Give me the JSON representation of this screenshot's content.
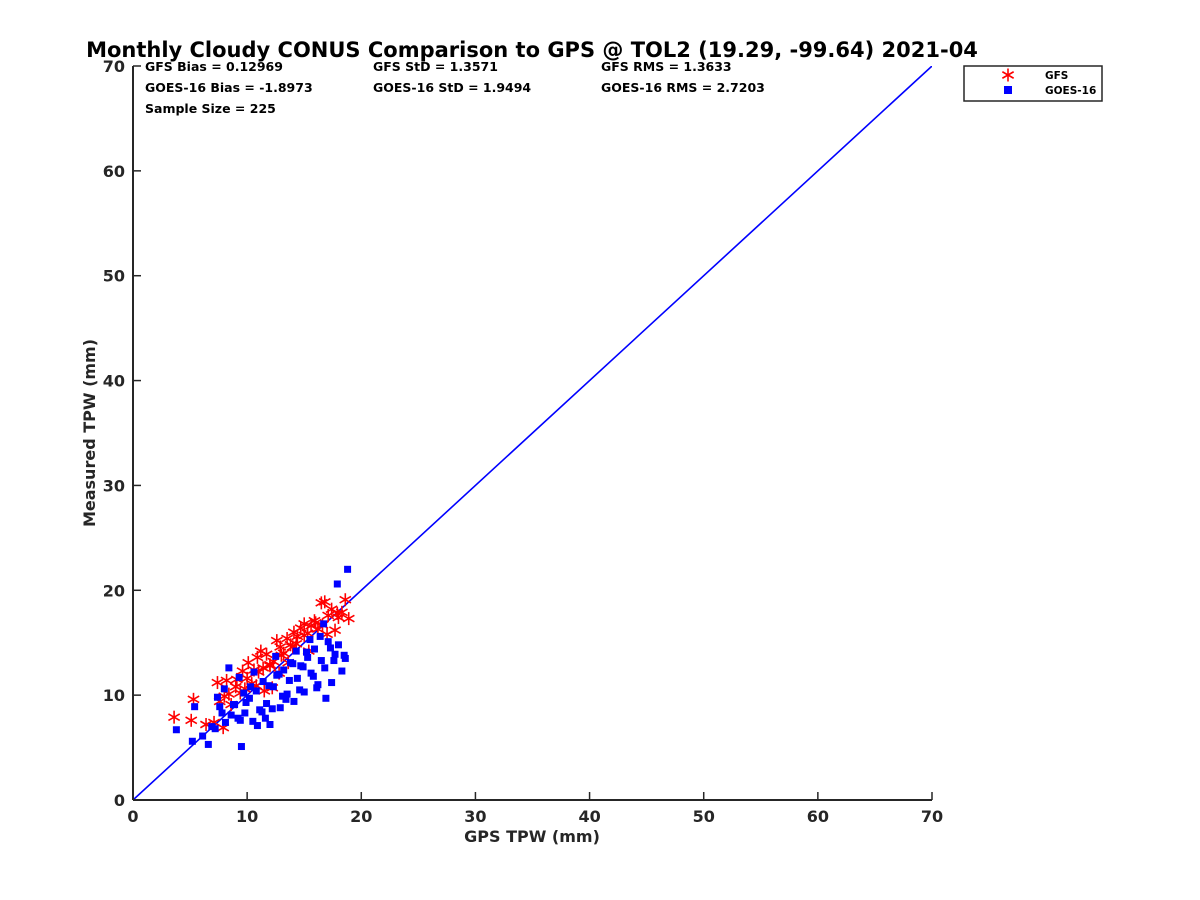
{
  "chart_data": {
    "type": "scatter",
    "title": "Monthly Cloudy CONUS Comparison to GPS @ TOL2 (19.29, -99.64) 2021-04",
    "xlabel": "GPS TPW (mm)",
    "ylabel": "Measured TPW (mm)",
    "xlim": [
      0,
      70
    ],
    "ylim": [
      0,
      70
    ],
    "xticks": [
      0,
      10,
      20,
      30,
      40,
      50,
      60,
      70
    ],
    "yticks": [
      0,
      10,
      20,
      30,
      40,
      50,
      60,
      70
    ],
    "grid": false,
    "legend_position": "outside-top-right",
    "stats": [
      [
        "GFS Bias = 0.12969",
        "GFS StD = 1.3571",
        "GFS RMS = 1.3633"
      ],
      [
        "GOES-16 Bias = -1.8973",
        "GOES-16 StD = 1.9494",
        "GOES-16 RMS = 2.7203"
      ],
      [
        "Sample Size = 225"
      ]
    ],
    "reference_line": {
      "x": [
        0,
        70
      ],
      "y": [
        0,
        70
      ],
      "color": "#0000ff"
    },
    "series": [
      {
        "name": "GFS",
        "marker": "asterisk",
        "color": "#ff0000",
        "x": [
          3.6,
          5.3,
          5.1,
          6.4,
          7.1,
          7.4,
          7.9,
          8.2,
          8.6,
          9.1,
          9.4,
          9.8,
          10.1,
          10.4,
          10.6,
          10.9,
          11.2,
          11.4,
          11.7,
          12.0,
          12.3,
          12.6,
          12.9,
          13.2,
          13.5,
          13.8,
          14.1,
          14.4,
          14.7,
          15.0,
          15.3,
          15.6,
          15.9,
          16.2,
          16.5,
          16.8,
          17.1,
          17.4,
          17.7,
          18.0,
          18.3,
          18.6,
          18.9,
          8.0,
          9.0,
          10.0,
          11.0,
          12.0,
          13.0,
          14.0,
          15.0,
          16.0,
          17.0,
          11.5,
          12.8,
          14.3,
          9.6,
          10.8,
          13.6,
          15.4,
          16.6,
          17.9,
          8.4,
          7.6,
          12.2
        ],
        "y": [
          7.9,
          9.6,
          7.6,
          7.2,
          7.4,
          11.2,
          6.9,
          11.4,
          9.1,
          11.5,
          10.2,
          10.6,
          13.1,
          11.1,
          12.4,
          13.6,
          14.2,
          12.6,
          13.9,
          12.8,
          13.2,
          15.2,
          14.6,
          14.0,
          15.4,
          14.8,
          16.0,
          15.6,
          16.4,
          16.8,
          15.9,
          16.6,
          17.1,
          16.3,
          18.8,
          18.9,
          17.6,
          18.2,
          16.2,
          17.4,
          17.9,
          19.1,
          17.3,
          9.9,
          10.8,
          11.6,
          12.2,
          12.9,
          13.8,
          14.6,
          15.7,
          16.9,
          15.8,
          10.4,
          12.1,
          14.9,
          12.3,
          10.9,
          13.1,
          14.2,
          16.7,
          17.8,
          10.1,
          9.4,
          10.7
        ]
      },
      {
        "name": "GOES-16",
        "marker": "square",
        "color": "#0000ff",
        "x": [
          3.8,
          5.2,
          5.4,
          6.1,
          6.6,
          7.2,
          7.6,
          8.1,
          8.4,
          8.8,
          9.2,
          9.5,
          9.8,
          10.2,
          10.5,
          10.8,
          11.1,
          11.4,
          11.7,
          12.0,
          12.3,
          12.6,
          12.9,
          13.2,
          13.5,
          13.8,
          14.1,
          14.4,
          14.7,
          15.0,
          15.3,
          15.6,
          15.9,
          16.2,
          16.5,
          16.8,
          17.1,
          17.4,
          17.7,
          18.0,
          18.3,
          18.6,
          18.8,
          7.4,
          8.0,
          8.6,
          9.3,
          9.9,
          10.6,
          11.3,
          11.9,
          12.5,
          13.1,
          13.7,
          14.3,
          14.9,
          15.5,
          16.1,
          16.7,
          17.3,
          17.9,
          18.5,
          9.7,
          10.9,
          12.2,
          13.4,
          14.6,
          15.8,
          16.9,
          11.6,
          10.3,
          12.8,
          14.0,
          15.2,
          16.4,
          17.6,
          7.8,
          8.9,
          6.9,
          9.4
        ],
        "y": [
          6.7,
          5.6,
          8.9,
          6.1,
          5.3,
          6.8,
          8.9,
          7.4,
          12.6,
          9.1,
          7.8,
          5.1,
          8.3,
          9.7,
          7.5,
          10.4,
          8.6,
          11.3,
          9.2,
          7.2,
          10.8,
          11.9,
          8.8,
          12.4,
          10.1,
          13.1,
          9.4,
          11.6,
          12.8,
          10.3,
          13.6,
          12.1,
          14.4,
          11.0,
          13.3,
          12.6,
          15.1,
          11.2,
          13.9,
          14.8,
          12.3,
          13.5,
          22.0,
          9.8,
          10.6,
          8.1,
          11.7,
          9.3,
          12.2,
          8.4,
          10.9,
          13.7,
          9.9,
          11.4,
          14.2,
          12.7,
          15.3,
          10.7,
          16.8,
          14.5,
          20.6,
          13.8,
          10.2,
          7.1,
          8.7,
          9.6,
          10.5,
          11.8,
          9.7,
          7.8,
          10.8,
          12.0,
          13.0,
          14.1,
          15.6,
          13.3,
          8.3,
          9.1,
          7.0,
          7.6
        ]
      }
    ]
  }
}
